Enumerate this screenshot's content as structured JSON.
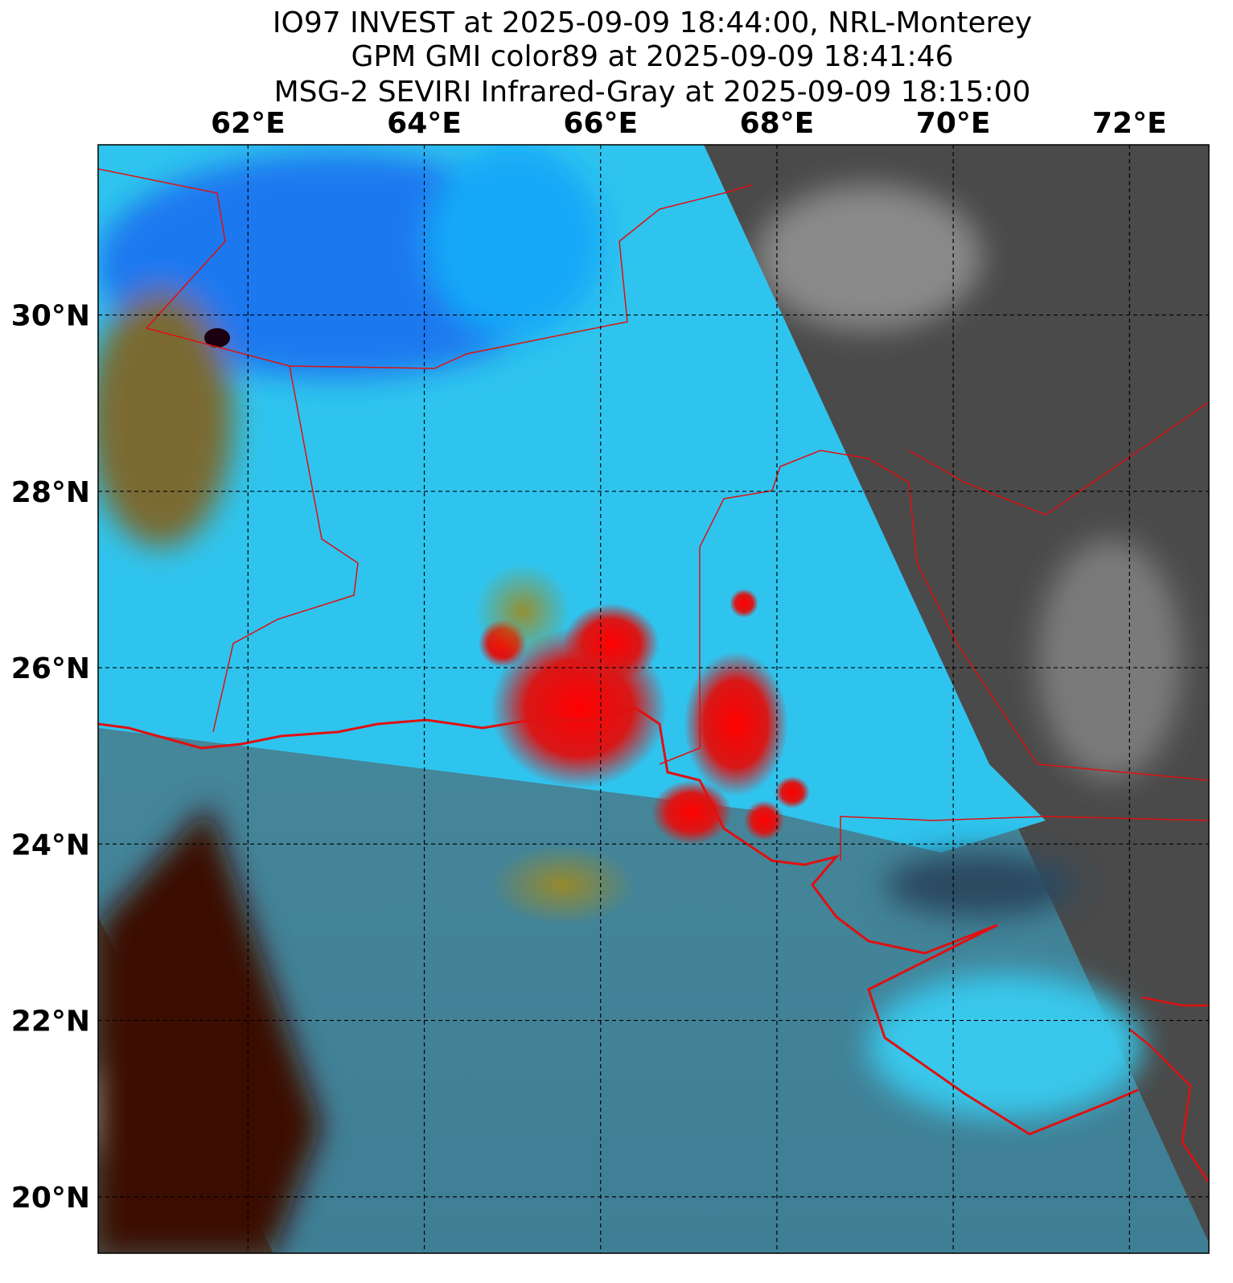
{
  "map": {
    "title": [
      "IO97 INVEST at 2025-09-09 18:44:00, NRL-Monterey",
      "GPM GMI color89 at 2025-09-09 18:41:46",
      "MSG-2 SEVIRI Infrared-Gray at 2025-09-09 18:15:00"
    ],
    "xlim": [
      60.3,
      72.9
    ],
    "ylim": [
      19.36,
      31.93
    ],
    "xticks": [
      {
        "value": 62,
        "label": "62°E"
      },
      {
        "value": 64,
        "label": "64°E"
      },
      {
        "value": 66,
        "label": "66°E"
      },
      {
        "value": 68,
        "label": "68°E"
      },
      {
        "value": 70,
        "label": "70°E"
      },
      {
        "value": 72,
        "label": "72°E"
      }
    ],
    "yticks": [
      {
        "value": 20,
        "label": "20°N"
      },
      {
        "value": 22,
        "label": "22°N"
      },
      {
        "value": 24,
        "label": "24°N"
      },
      {
        "value": 26,
        "label": "26°N"
      },
      {
        "value": 28,
        "label": "28°N"
      },
      {
        "value": 30,
        "label": "30°N"
      }
    ]
  }
}
